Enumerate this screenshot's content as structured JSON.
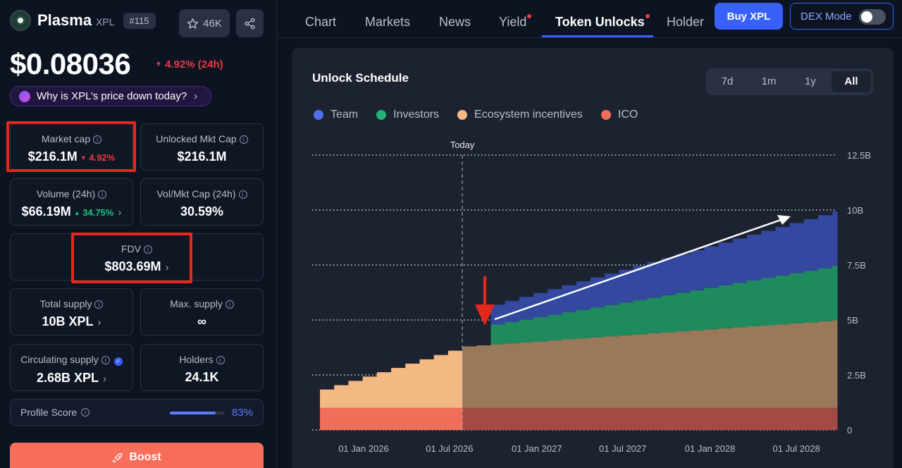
{
  "coin": {
    "name": "Plasma",
    "symbol": "XPL",
    "rank": "#115",
    "watch_count": "46K",
    "price": "$0.08036",
    "price_change": "4.92% (24h)",
    "why_prompt": "Why is XPL’s price down today?"
  },
  "stats": {
    "market_cap": {
      "label": "Market cap",
      "value": "$216.1M",
      "change": "4.92%"
    },
    "unlocked_mkt_cap": {
      "label": "Unlocked Mkt Cap",
      "value": "$216.1M"
    },
    "volume": {
      "label": "Volume (24h)",
      "value": "$66.19M",
      "change": "34.75%"
    },
    "vol_mkt_cap": {
      "label": "Vol/Mkt Cap (24h)",
      "value": "30.59%"
    },
    "fdv": {
      "label": "FDV",
      "value": "$803.69M"
    },
    "total_supply": {
      "label": "Total supply",
      "value": "10B XPL"
    },
    "max_supply": {
      "label": "Max. supply",
      "value": "∞"
    },
    "circulating_supply": {
      "label": "Circulating supply",
      "value": "2.68B XPL"
    },
    "holders": {
      "label": "Holders",
      "value": "24.1K"
    }
  },
  "profile": {
    "label": "Profile Score",
    "value": "83%",
    "score": 0.83
  },
  "boost_label": "Boost",
  "nav": {
    "tabs": [
      "Chart",
      "Markets",
      "News",
      "Yield",
      "Token Unlocks",
      "Holder"
    ],
    "active_tab": "Token Unlocks",
    "buy_label": "Buy XPL",
    "dex_label": "DEX Mode"
  },
  "schedule": {
    "title": "Unlock Schedule",
    "ranges": [
      "7d",
      "1m",
      "1y",
      "All"
    ],
    "selected_range": "All"
  },
  "colors": {
    "team": "#3d5ccc",
    "investors": "#1f9e6a",
    "ecosystem": "#f4b883",
    "ico": "#f06e5a",
    "highlight": "#e5281c",
    "accent": "#3861fb"
  },
  "icons": [
    "star-icon",
    "share-icon",
    "info-icon",
    "chevron-right-icon",
    "rocket-icon",
    "verified-icon"
  ],
  "chart_data": {
    "type": "area",
    "title": "Unlock Schedule",
    "stacked": true,
    "x_ticks": [
      "01 Jan 2026",
      "01 Jul 2026",
      "01 Jan 2027",
      "01 Jul 2027",
      "01 Jan 2028",
      "01 Jul 2028"
    ],
    "y_ticks": [
      "0",
      "2.5B",
      "5B",
      "7.5B",
      "10B",
      "12.5B"
    ],
    "ylim": [
      0,
      12.5
    ],
    "y_unit": "B",
    "today_label": "Today",
    "today_date": "2026-07-28",
    "series": [
      {
        "name": "ICO",
        "color": "#f06e5a",
        "points": [
          [
            "2025-09-25",
            1.0
          ],
          [
            "2028-09-25",
            1.0
          ]
        ]
      },
      {
        "name": "Ecosystem incentives",
        "color": "#f4b883",
        "points": [
          [
            "2025-09-25",
            0.8
          ],
          [
            "2026-07-28",
            2.8
          ],
          [
            "2028-09-25",
            4.0
          ]
        ]
      },
      {
        "name": "Investors",
        "color": "#1f9e6a",
        "points": [
          [
            "2026-09-25",
            0.9
          ],
          [
            "2028-09-25",
            2.5
          ]
        ]
      },
      {
        "name": "Team",
        "color": "#3d5ccc",
        "points": [
          [
            "2026-09-25",
            0.9
          ],
          [
            "2028-09-25",
            2.5
          ]
        ]
      }
    ],
    "grid": true,
    "legend_placement": "top-left"
  }
}
